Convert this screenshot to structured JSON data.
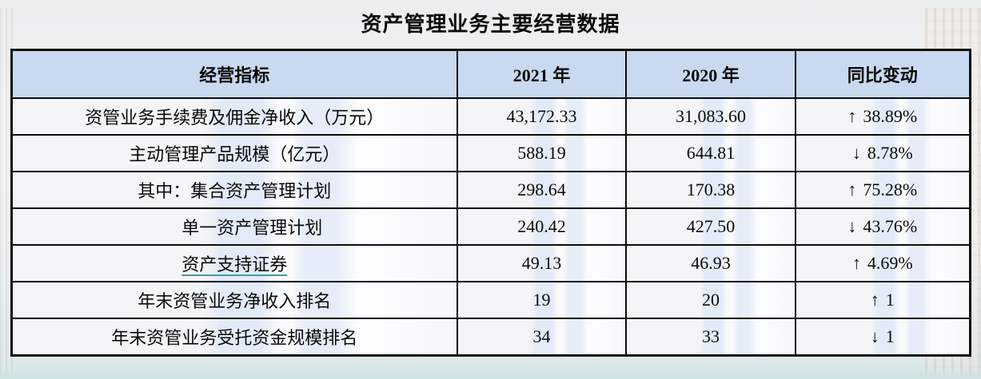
{
  "title": "资产管理业务主要经营数据",
  "table": {
    "headers": {
      "indicator": "经营指标",
      "y2021": "2021 年",
      "y2020": "2020 年",
      "change": "同比变动"
    },
    "rows": [
      {
        "indicator": "资管业务手续费及佣金净收入（万元）",
        "y2021": "43,172.33",
        "y2020": "31,083.60",
        "change_arrow": "↑",
        "change_value": "38.89%"
      },
      {
        "indicator": "主动管理产品规模（亿元）",
        "y2021": "588.19",
        "y2020": "644.81",
        "change_arrow": "↓",
        "change_value": "8.78%"
      },
      {
        "indicator": "其中：集合资产管理计划",
        "y2021": "298.64",
        "y2020": "170.38",
        "change_arrow": "↑",
        "change_value": "75.28%"
      },
      {
        "indicator": "单一资产管理计划",
        "y2021": "240.42",
        "y2020": "427.50",
        "change_arrow": "↓",
        "change_value": "43.76%"
      },
      {
        "indicator": "资产支持证券",
        "y2021": "49.13",
        "y2020": "46.93",
        "change_arrow": "↑",
        "change_value": "4.69%"
      },
      {
        "indicator": "年末资管业务净收入排名",
        "y2021": "19",
        "y2020": "20",
        "change_arrow": "↑",
        "change_value": "1"
      },
      {
        "indicator": "年末资管业务受托资金规模排名",
        "y2021": "34",
        "y2020": "33",
        "change_arrow": "↓",
        "change_value": "1"
      }
    ]
  },
  "colors": {
    "header_bg": "#c9d9ef",
    "underline": "#2aa6ad",
    "border": "#0c0c0c"
  }
}
